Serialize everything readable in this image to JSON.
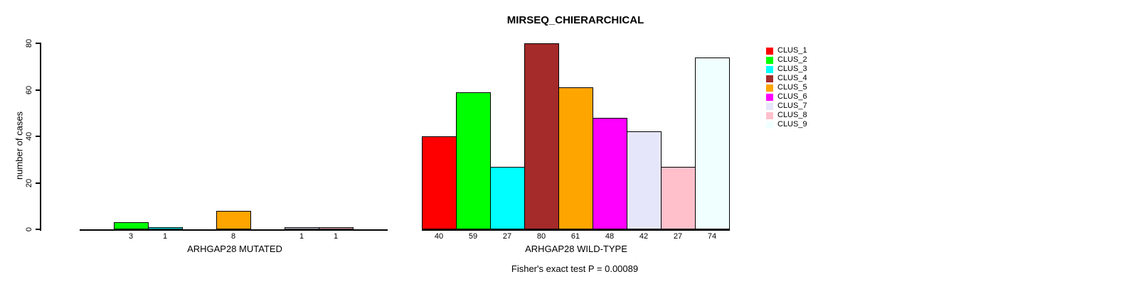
{
  "chart_data": {
    "type": "bar",
    "title": "MIRSEQ_CHIERARCHICAL",
    "ylabel": "number of cases",
    "ylim": [
      0,
      80
    ],
    "yticks": [
      0,
      20,
      40,
      60,
      80
    ],
    "grid": false,
    "categories": [
      "CLUS_1",
      "CLUS_2",
      "CLUS_3",
      "CLUS_4",
      "CLUS_5",
      "CLUS_6",
      "CLUS_7",
      "CLUS_8",
      "CLUS_9"
    ],
    "colors": [
      "#FF0000",
      "#00FF00",
      "#00FFFF",
      "#A52A2A",
      "#FFA500",
      "#FF00FF",
      "#E6E6FA",
      "#FFC0CB",
      "#F0FFFF"
    ],
    "groups": [
      {
        "label": "ARHGAP28 MUTATED",
        "values": [
          0,
          3,
          1,
          0,
          8,
          0,
          1,
          1,
          0
        ]
      },
      {
        "label": "ARHGAP28 WILD-TYPE",
        "values": [
          40,
          59,
          27,
          80,
          61,
          48,
          42,
          27,
          74
        ]
      }
    ],
    "bar_value_labels_shown_only_when_nonzero": true,
    "legend": {
      "position": "right",
      "labels": [
        "CLUS_1",
        "CLUS_2",
        "CLUS_3",
        "CLUS_4",
        "CLUS_5",
        "CLUS_6",
        "CLUS_7",
        "CLUS_8",
        "CLUS_9"
      ]
    },
    "footnote": "Fisher's exact test P = 0.00089",
    "axis_color": "#000000",
    "background_color": "#FFFFFF"
  }
}
